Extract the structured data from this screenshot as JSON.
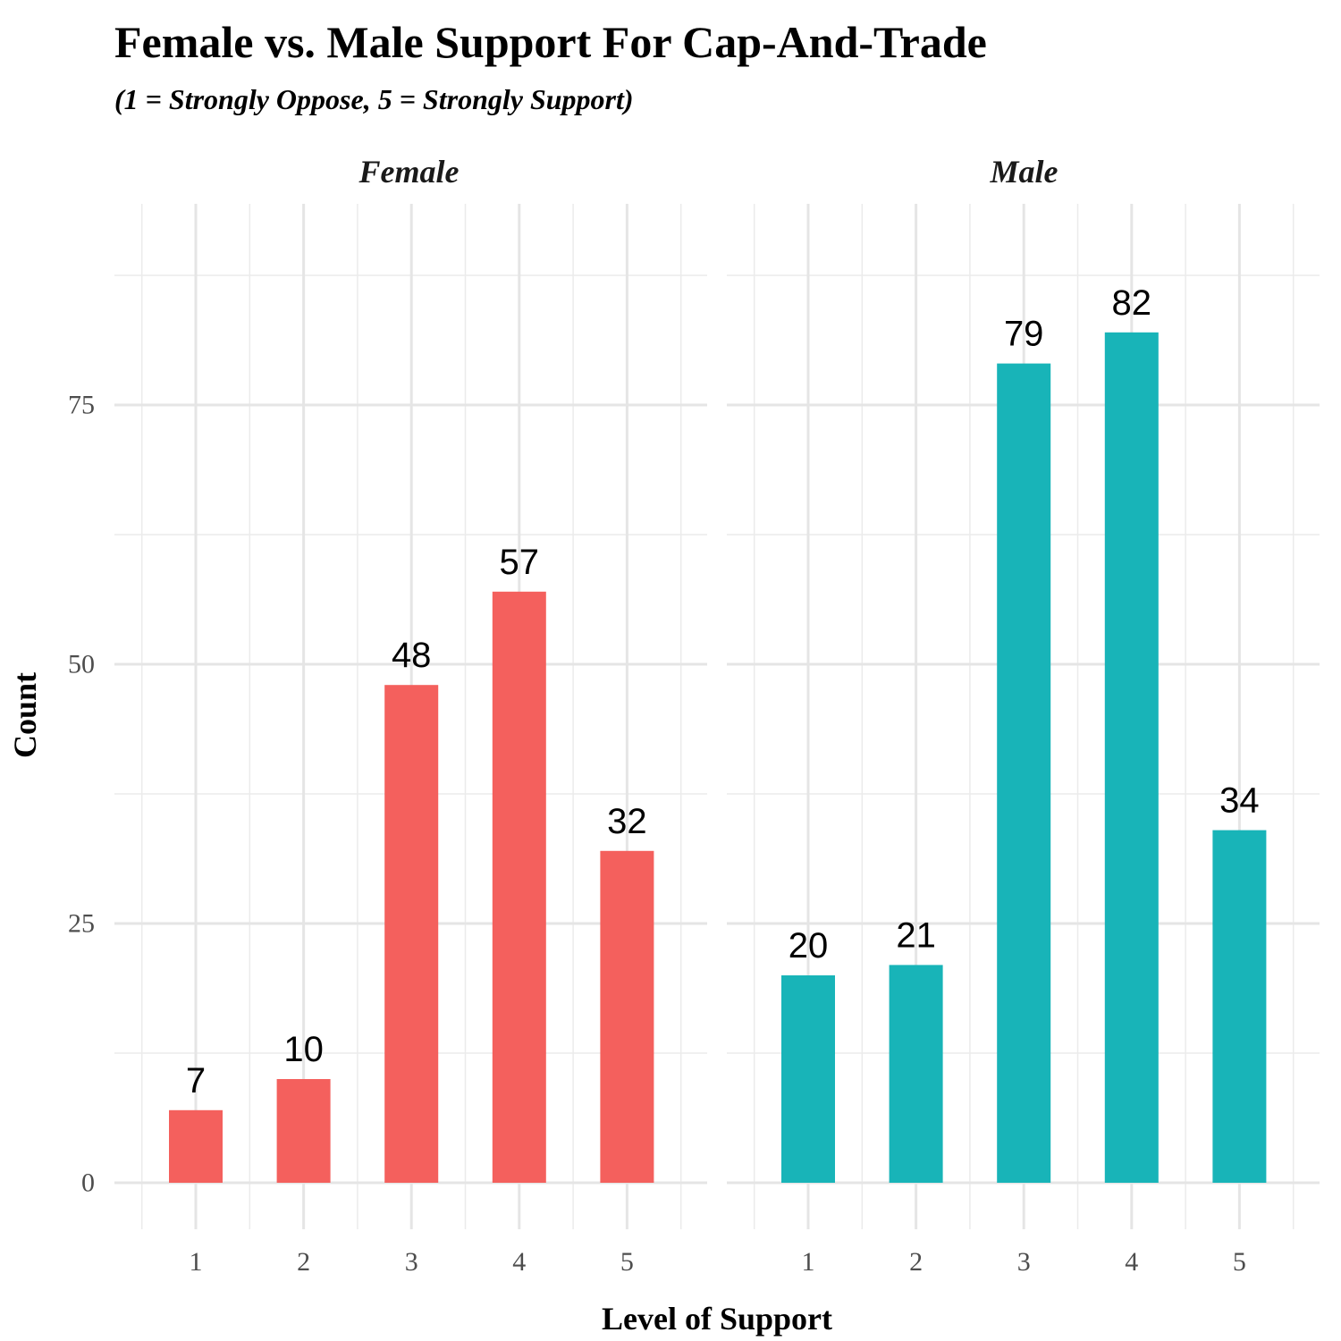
{
  "chart_data": {
    "type": "bar",
    "title": "Female vs. Male Support For Cap-And-Trade",
    "subtitle": "(1 = Strongly Oppose, 5 = Strongly Support)",
    "xlabel": "Level of Support",
    "ylabel": "Count",
    "categories": [
      "1",
      "2",
      "3",
      "4",
      "5"
    ],
    "y_ticks": [
      "0",
      "25",
      "50",
      "75"
    ],
    "ylim": [
      0,
      93
    ],
    "grid": true,
    "legend": "none",
    "facets": [
      {
        "name": "Female",
        "color": "#F4605D",
        "values": [
          7,
          10,
          48,
          57,
          32
        ],
        "labels": [
          "7",
          "10",
          "48",
          "57",
          "32"
        ]
      },
      {
        "name": "Male",
        "color": "#18B4B8",
        "values": [
          20,
          21,
          79,
          82,
          34
        ],
        "labels": [
          "20",
          "21",
          "79",
          "82",
          "34"
        ]
      }
    ]
  }
}
